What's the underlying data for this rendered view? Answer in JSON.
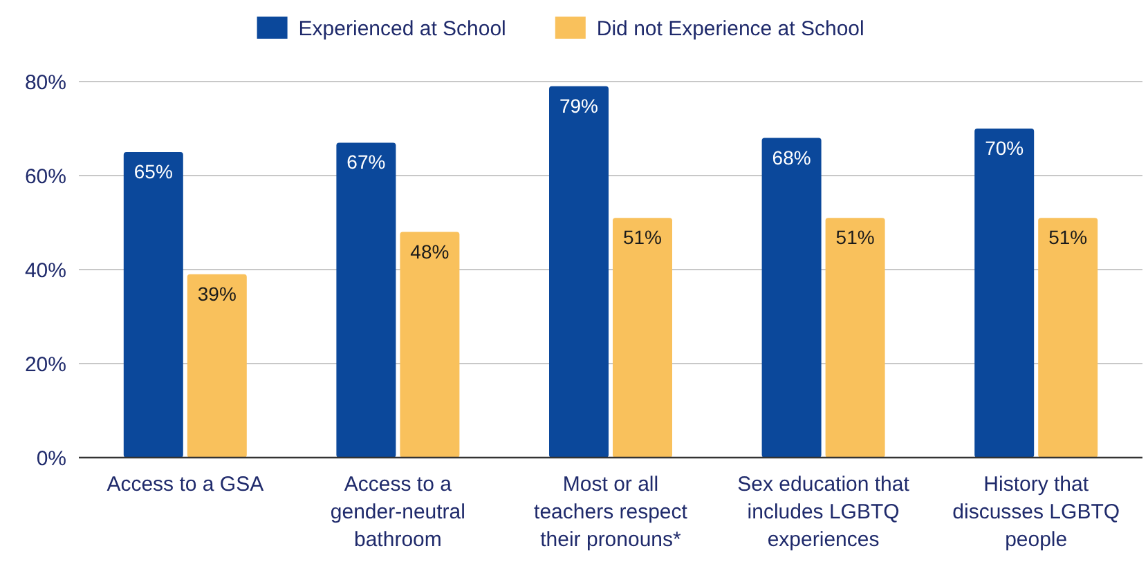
{
  "chart_data": {
    "type": "bar",
    "categories": [
      "Access to a GSA",
      "Access to a gender-neutral bathroom",
      "Most or all teachers respect their pronouns*",
      "Sex education that includes LGBTQ experiences",
      "History that discusses LGBTQ people"
    ],
    "series": [
      {
        "name": "Experienced at School",
        "color": "#0b489b",
        "values": [
          65,
          67,
          79,
          68,
          70
        ],
        "value_labels": [
          "65%",
          "67%",
          "79%",
          "68%",
          "70%"
        ]
      },
      {
        "name": "Did not Experience at School",
        "color": "#f9c15c",
        "values": [
          39,
          48,
          51,
          51,
          51
        ],
        "value_labels": [
          "39%",
          "48%",
          "51%",
          "51%",
          "51%"
        ]
      }
    ],
    "ylim": [
      0,
      80
    ],
    "yticks": [
      {
        "value": 0,
        "label": "0%"
      },
      {
        "value": 20,
        "label": "20%"
      },
      {
        "value": 40,
        "label": "40%"
      },
      {
        "value": 60,
        "label": "60%"
      },
      {
        "value": 80,
        "label": "80%"
      }
    ],
    "grid": "y",
    "legend": "top"
  }
}
